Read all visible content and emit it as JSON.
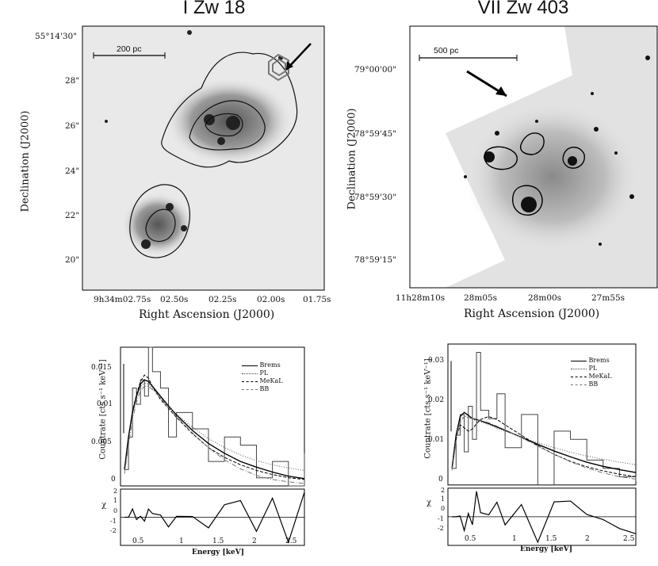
{
  "figure": {
    "left_title": "I Zw 18",
    "right_title": "VII Zw 403",
    "left_image": {
      "scale_bar": "200 pc",
      "xlabel": "Right Ascension (J2000)",
      "ylabel": "Declination (J2000)",
      "xticks": [
        "9h34m02.75s",
        "02.50s",
        "02.25s",
        "02.00s",
        "01.75s"
      ],
      "yticks": [
        "55°14'30\"",
        "28\"",
        "26\"",
        "24\"",
        "22\"",
        "20\""
      ]
    },
    "right_image": {
      "scale_bar": "500 pc",
      "xlabel": "Right Ascension (J2000)",
      "ylabel": "Declination (J2000)",
      "xticks": [
        "11h28m10s",
        "28m05s",
        "28m00s",
        "27m55s"
      ],
      "yticks": [
        "79°00'00\"",
        "78°59'45\"",
        "78°59'30\"",
        "78°59'15\""
      ]
    },
    "left_spectrum": {
      "ylabel": "Countrate [cts s⁻¹ keV⁻¹]",
      "xlabel": "Energy [keV]",
      "chi_label": "χ",
      "yticks": [
        "0.015",
        "0.01",
        "0.005",
        "0"
      ],
      "xticks": [
        "0.5",
        "1",
        "1.5",
        "2",
        "2.5"
      ],
      "chi_ticks": [
        "2",
        "1",
        "0",
        "-1",
        "-2"
      ],
      "legend": [
        "Brems",
        "PL",
        "MeKaL",
        "BB"
      ]
    },
    "right_spectrum": {
      "ylabel": "Countrate [cts s⁻¹ keV⁻¹]",
      "xlabel": "Energy [keV]",
      "chi_label": "χ",
      "yticks": [
        "0.03",
        "0.02",
        "0.01",
        "0"
      ],
      "xticks": [
        "0.5",
        "1",
        "1.5",
        "2",
        "2.5"
      ],
      "chi_ticks": [
        "2",
        "1",
        "0",
        "-1",
        "-2"
      ],
      "legend": [
        "Brems",
        "PL",
        "MeKaL",
        "BB"
      ]
    }
  },
  "chart_data": [
    {
      "type": "line",
      "title": "I Zw 18",
      "xlabel": "Energy [keV]",
      "ylabel": "Countrate [cts s⁻¹ keV⁻¹]",
      "xlim": [
        0.3,
        2.6
      ],
      "ylim": [
        0,
        0.017
      ],
      "x": [
        0.35,
        0.4,
        0.45,
        0.5,
        0.55,
        0.6,
        0.65,
        0.7,
        0.8,
        0.9,
        1.0,
        1.2,
        1.4,
        1.6,
        1.8,
        2.0,
        2.2,
        2.4,
        2.6
      ],
      "series": [
        {
          "name": "data",
          "values": [
            0.002,
            0.006,
            0.012,
            0.01,
            0.013,
            0.011,
            0.017,
            0.014,
            0.012,
            0.006,
            0.009,
            0.007,
            0.003,
            0.006,
            0.005,
            0.001,
            0.003,
            0.0,
            0.004
          ]
        },
        {
          "name": "Brems",
          "values": [
            0.002,
            0.006,
            0.009,
            0.011,
            0.0125,
            0.013,
            0.0128,
            0.0122,
            0.011,
            0.0098,
            0.0087,
            0.0068,
            0.0052,
            0.004,
            0.003,
            0.0023,
            0.0017,
            0.0012,
            0.0009
          ]
        },
        {
          "name": "PL",
          "values": [
            0.002,
            0.0058,
            0.0088,
            0.0108,
            0.0122,
            0.0126,
            0.0125,
            0.012,
            0.0108,
            0.0097,
            0.0088,
            0.0072,
            0.0058,
            0.0047,
            0.0038,
            0.0031,
            0.0026,
            0.0022,
            0.0019
          ]
        },
        {
          "name": "MeKaL",
          "values": [
            0.002,
            0.006,
            0.0092,
            0.0112,
            0.0128,
            0.0136,
            0.0132,
            0.0122,
            0.0106,
            0.0095,
            0.0084,
            0.0064,
            0.0047,
            0.0035,
            0.0026,
            0.0019,
            0.0014,
            0.001,
            0.0008
          ]
        },
        {
          "name": "BB",
          "values": [
            0.0015,
            0.005,
            0.0082,
            0.0102,
            0.0117,
            0.0122,
            0.0122,
            0.0118,
            0.0108,
            0.0096,
            0.0085,
            0.0065,
            0.0047,
            0.0032,
            0.0021,
            0.0013,
            0.0008,
            0.0005,
            0.0003
          ]
        }
      ]
    },
    {
      "type": "line",
      "title": "VII Zw 403",
      "xlabel": "Energy [keV]",
      "ylabel": "Countrate [cts s⁻¹ keV⁻¹]",
      "xlim": [
        0.3,
        2.6
      ],
      "ylim": [
        0,
        0.034
      ],
      "x": [
        0.35,
        0.4,
        0.45,
        0.5,
        0.55,
        0.6,
        0.65,
        0.7,
        0.8,
        0.9,
        1.0,
        1.2,
        1.4,
        1.6,
        1.8,
        2.0,
        2.2,
        2.4,
        2.6
      ],
      "series": [
        {
          "name": "data",
          "values": [
            0.004,
            0.012,
            0.017,
            0.008,
            0.019,
            0.011,
            0.032,
            0.018,
            0.016,
            0.022,
            0.009,
            0.017,
            0.0,
            0.013,
            0.011,
            0.006,
            0.004,
            0.002,
            0.001
          ]
        },
        {
          "name": "Brems",
          "values": [
            0.004,
            0.012,
            0.0165,
            0.0175,
            0.0168,
            0.016,
            0.0158,
            0.0155,
            0.0148,
            0.014,
            0.0132,
            0.0115,
            0.0098,
            0.0082,
            0.0068,
            0.0055,
            0.0045,
            0.0037,
            0.003
          ]
        },
        {
          "name": "PL",
          "values": [
            0.004,
            0.0115,
            0.0158,
            0.0168,
            0.0163,
            0.0158,
            0.0155,
            0.0152,
            0.0145,
            0.0137,
            0.013,
            0.0115,
            0.0102,
            0.009,
            0.0079,
            0.007,
            0.0062,
            0.0055,
            0.0049
          ]
        },
        {
          "name": "MeKaL",
          "values": [
            0.004,
            0.011,
            0.0145,
            0.0138,
            0.013,
            0.0135,
            0.0148,
            0.0158,
            0.0165,
            0.0158,
            0.0145,
            0.012,
            0.0095,
            0.0074,
            0.0057,
            0.0044,
            0.0034,
            0.0026,
            0.002
          ]
        },
        {
          "name": "BB",
          "values": [
            0.0035,
            0.0105,
            0.0152,
            0.0165,
            0.0163,
            0.016,
            0.0158,
            0.0156,
            0.015,
            0.0142,
            0.0133,
            0.0114,
            0.0094,
            0.0074,
            0.0056,
            0.0041,
            0.0029,
            0.002,
            0.0014
          ]
        }
      ]
    }
  ]
}
